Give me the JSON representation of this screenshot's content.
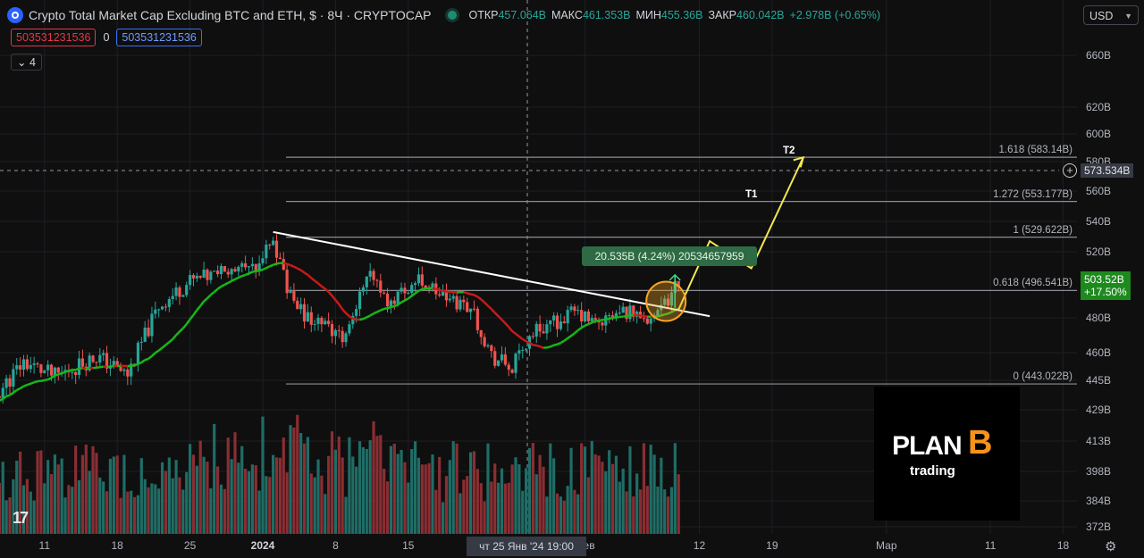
{
  "header": {
    "title": "Crypto Total Market Cap Excluding BTC and ETH, $ · 8Ч · CRYPTOCAP",
    "open_label": "ОТКР",
    "open_value": "457.064B",
    "high_label": "МАКС",
    "high_value": "461.353B",
    "low_label": "МИН",
    "low_value": "455.36B",
    "close_label": "ЗАКР",
    "close_value": "460.042B",
    "change": "+2.978B (+0.65%)"
  },
  "indicator": {
    "value_red": "503531231536",
    "zero": "0",
    "value_blue": "503531231536",
    "collapsed_count": "4"
  },
  "currency": "USD",
  "y_ticks": [
    "660B",
    "620B",
    "600B",
    "580B",
    "560B",
    "540B",
    "520B",
    "480B",
    "460B",
    "445B",
    "429B",
    "413B",
    "398B",
    "384B",
    "372B"
  ],
  "x_ticks": [
    "11",
    "18",
    "25",
    "2024",
    "8",
    "15",
    "Фев",
    "12",
    "19",
    "Мар",
    "11",
    "18"
  ],
  "crosshair": {
    "x_label": "чт 25 Янв '24   19:00",
    "y_label": "573.534B"
  },
  "price_badge": {
    "price": "503.52B",
    "change": "+17.50%"
  },
  "fib_levels": [
    {
      "ratio": "1.618",
      "label": "1.618 (583.14B)",
      "value": 583.14
    },
    {
      "ratio": "1.272",
      "label": "1.272 (553.177B)",
      "value": 553.177
    },
    {
      "ratio": "1",
      "label": "1 (529.622B)",
      "value": 529.622
    },
    {
      "ratio": "0.618",
      "label": "0.618 (496.541B)",
      "value": 496.541
    },
    {
      "ratio": "0",
      "label": "0 (443.022B)",
      "value": 443.022
    }
  ],
  "targets": {
    "t1": "T1",
    "t2": "T2"
  },
  "measure_label": "20.535B (4.24%) 20534657959",
  "watermark": {
    "line1": "PLAN",
    "symbol": "B",
    "line2": "trading"
  },
  "colors": {
    "up": "#26a69a",
    "down": "#ef5350",
    "ma_up": "#17b817",
    "ma_down": "#c91a1a",
    "projection": "#f2e94e",
    "trendline": "#ffffff"
  },
  "chart_data": {
    "type": "candlestick",
    "title": "Crypto Total Market Cap Excluding BTC and ETH, $ · 8Ч · CRYPTOCAP",
    "interval": "8h",
    "ylim": [
      372,
      665
    ],
    "y_unit": "B",
    "anchors": [
      [
        "2023-12-05",
        428
      ],
      [
        "2023-12-09",
        455
      ],
      [
        "2023-12-12",
        447
      ],
      [
        "2023-12-16",
        458
      ],
      [
        "2023-12-19",
        448
      ],
      [
        "2023-12-22",
        487
      ],
      [
        "2023-12-25",
        502
      ],
      [
        "2023-12-28",
        507
      ],
      [
        "2023-12-31",
        510
      ],
      [
        "2024-01-02",
        526
      ],
      [
        "2024-01-04",
        486
      ],
      [
        "2024-01-06",
        478
      ],
      [
        "2024-01-09",
        470
      ],
      [
        "2024-01-11",
        508
      ],
      [
        "2024-01-13",
        490
      ],
      [
        "2024-01-16",
        503
      ],
      [
        "2024-01-19",
        490
      ],
      [
        "2024-01-21",
        487
      ],
      [
        "2024-01-23",
        458
      ],
      [
        "2024-01-25",
        451
      ],
      [
        "2024-01-27",
        472
      ],
      [
        "2024-01-31",
        483
      ],
      [
        "2024-02-02",
        476
      ],
      [
        "2024-02-05",
        484
      ],
      [
        "2024-02-08",
        480
      ],
      [
        "2024-02-10",
        503
      ]
    ],
    "trendline": [
      [
        "2024-01-02",
        533
      ],
      [
        "2024-02-13",
        481
      ]
    ],
    "projection": [
      [
        "2024-02-10",
        485
      ],
      [
        "2024-02-13",
        527
      ],
      [
        "2024-02-17",
        510
      ],
      [
        "2024-02-22",
        583
      ]
    ],
    "volume_relative": "bars",
    "legend": "none"
  }
}
